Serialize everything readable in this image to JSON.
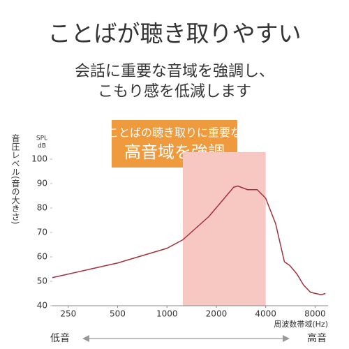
{
  "header": {
    "title": "ことばが聴き取りやすい",
    "subtitle": [
      "会話に重要な音域を強調し、",
      "こもり感を低減します"
    ]
  },
  "callout": {
    "lines": [
      "ことばの聴き取りに重要な",
      "高音域を強調"
    ],
    "color": "#ef9a3c"
  },
  "chart_data": {
    "type": "line",
    "ylabel": "音圧レベル(音の大きさ)",
    "yunit": [
      "SPL",
      "dB"
    ],
    "xlabel": "周波数帯域(Hz)",
    "x": [
      200,
      500,
      1000,
      1250,
      1800,
      2550,
      2700,
      3100,
      3550,
      4000,
      4600,
      5200,
      5600,
      6200,
      6800,
      7500,
      8700,
      9250
    ],
    "series": [
      {
        "color": "#a3303c",
        "values": [
          51.5,
          57.5,
          63.5,
          67,
          76.5,
          88.5,
          89,
          87.5,
          87.5,
          84,
          73.5,
          58,
          56.5,
          53,
          48.5,
          45.5,
          44.5,
          45
        ]
      }
    ],
    "xlim": [
      200,
      9600
    ],
    "ylim": [
      40,
      100
    ],
    "log_x": true,
    "xticks": [
      250,
      500,
      1000,
      2000,
      4000,
      8000
    ],
    "yticks": [
      40,
      50,
      60,
      70,
      80,
      90,
      100
    ],
    "highlight_range": [
      1250,
      4000
    ],
    "highlight_color": "#f7c8c1"
  },
  "footer": {
    "low": "低音",
    "high": "高音"
  }
}
